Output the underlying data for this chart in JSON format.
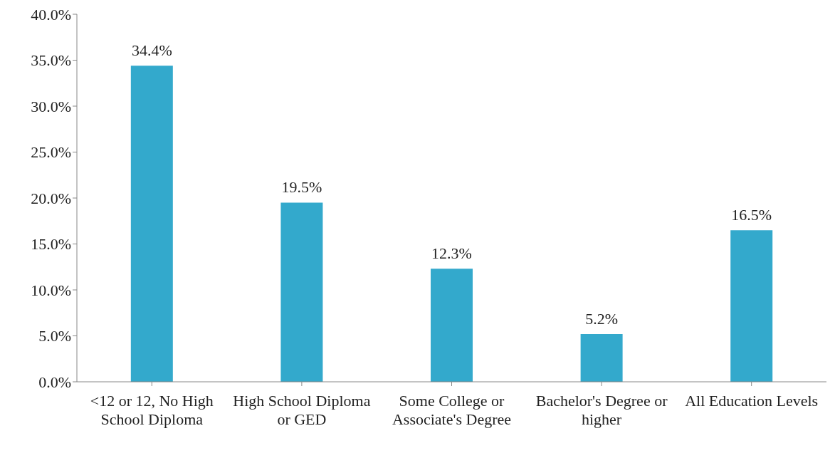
{
  "chart_data": {
    "type": "bar",
    "categories": [
      "<12 or 12, No High School Diploma",
      "High School Diploma or GED",
      "Some College or Associate's Degree",
      "Bachelor's Degree or higher",
      "All Education Levels"
    ],
    "values": [
      34.4,
      19.5,
      12.3,
      5.2,
      16.5
    ],
    "value_labels": [
      "34.4%",
      "19.5%",
      "12.3%",
      "5.2%",
      "16.5%"
    ],
    "color": "#33a9cc",
    "ylim": [
      0,
      40
    ],
    "yticks": [
      {
        "value": 0,
        "label": "0.0%"
      },
      {
        "value": 5,
        "label": "5.0%"
      },
      {
        "value": 10,
        "label": "10.0%"
      },
      {
        "value": 15,
        "label": "15.0%"
      },
      {
        "value": 20,
        "label": "20.0%"
      },
      {
        "value": 25,
        "label": "25.0%"
      },
      {
        "value": 30,
        "label": "30.0%"
      },
      {
        "value": 35,
        "label": "35.0%"
      },
      {
        "value": 40,
        "label": "40.0%"
      }
    ],
    "grid": false,
    "legend": false
  }
}
